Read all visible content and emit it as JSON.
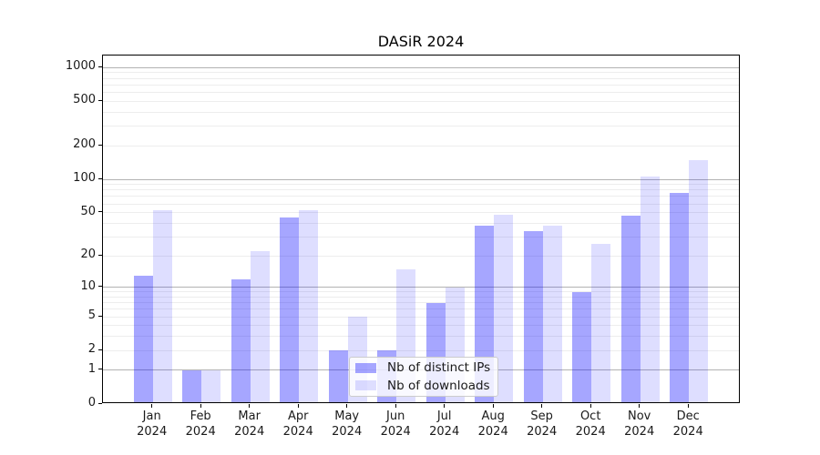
{
  "chart_data": {
    "type": "bar",
    "title": "DASiR 2024",
    "categories": [
      "Jan 2024",
      "Feb 2024",
      "Mar 2024",
      "Apr 2024",
      "May 2024",
      "Jun 2024",
      "Jul 2024",
      "Aug 2024",
      "Sep 2024",
      "Oct 2024",
      "Nov 2024",
      "Dec 2024"
    ],
    "series": [
      {
        "name": "Nb of distinct IPs",
        "color": "rgba(0,0,255,0.35)",
        "values": [
          13,
          1,
          12,
          45,
          2,
          2,
          7,
          38,
          34,
          9,
          47,
          75
        ]
      },
      {
        "name": "Nb of downloads",
        "color": "rgba(0,0,255,0.13)",
        "values": [
          53,
          1,
          22,
          53,
          5,
          15,
          10,
          48,
          38,
          26,
          105,
          150
        ]
      }
    ],
    "y_scale": "log10(value+1)",
    "y_ticks": [
      0,
      1,
      2,
      5,
      10,
      20,
      50,
      100,
      200,
      500,
      1000
    ],
    "ylim": [
      0,
      1270
    ],
    "grid": "major and minor horizontal gridlines",
    "legend_position": "lower center"
  },
  "colors": {
    "major_grid": "#b3b3b3",
    "minor_grid": "#ededed",
    "axis": "#000000",
    "text": "#1a1a1a",
    "legend_border": "#cccccc",
    "legend_bg": "rgba(255,255,255,0.8)"
  }
}
